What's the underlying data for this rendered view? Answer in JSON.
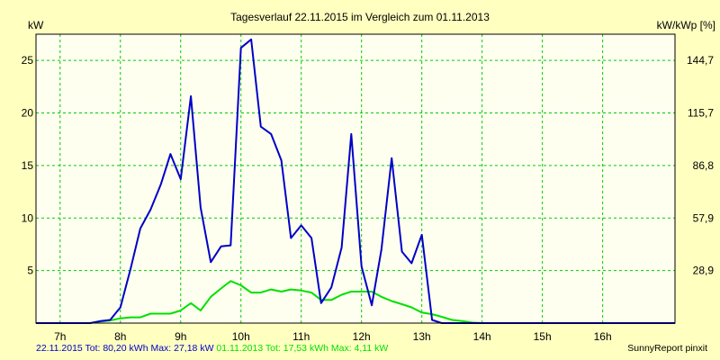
{
  "chart_data": {
    "type": "line",
    "title": "Tagesverlauf 22.11.2015 im Vergleich zum 01.11.2013",
    "ylabel_left": "kW",
    "ylabel_right": "kW/kWp [%]",
    "xlim": [
      6.6,
      17.2
    ],
    "ylim": [
      0,
      27.5
    ],
    "grid": true,
    "x_ticks": [
      {
        "value": 7,
        "label": "7h"
      },
      {
        "value": 8,
        "label": "8h"
      },
      {
        "value": 9,
        "label": "9h"
      },
      {
        "value": 10,
        "label": "10h"
      },
      {
        "value": 11,
        "label": "11h"
      },
      {
        "value": 12,
        "label": "12h"
      },
      {
        "value": 13,
        "label": "13h"
      },
      {
        "value": 14,
        "label": "14h"
      },
      {
        "value": 15,
        "label": "15h"
      },
      {
        "value": 16,
        "label": "16h"
      }
    ],
    "y_ticks_left": [
      {
        "value": 5,
        "label": "5"
      },
      {
        "value": 10,
        "label": "10"
      },
      {
        "value": 15,
        "label": "15"
      },
      {
        "value": 20,
        "label": "20"
      },
      {
        "value": 25,
        "label": "25"
      }
    ],
    "y_ticks_right": [
      {
        "value": 5,
        "label": "28,9"
      },
      {
        "value": 10,
        "label": "57,9"
      },
      {
        "value": 15,
        "label": "86,8"
      },
      {
        "value": 20,
        "label": "115,7"
      },
      {
        "value": 25,
        "label": "144,7"
      }
    ],
    "series": [
      {
        "name": "22.11.2015",
        "color": "#0000c8",
        "x": [
          6.6,
          7.5,
          7.67,
          7.83,
          8.0,
          8.17,
          8.33,
          8.5,
          8.67,
          8.83,
          9.0,
          9.17,
          9.33,
          9.5,
          9.67,
          9.83,
          10.0,
          10.17,
          10.33,
          10.5,
          10.67,
          10.83,
          11.0,
          11.17,
          11.33,
          11.5,
          11.67,
          11.83,
          12.0,
          12.17,
          12.33,
          12.5,
          12.67,
          12.83,
          13.0,
          13.17,
          13.33,
          13.5,
          13.67,
          13.83,
          14.0,
          14.17,
          14.33,
          14.5,
          14.67,
          14.83,
          15.0,
          15.17,
          15.33,
          15.5,
          15.67,
          16.0,
          17.2
        ],
        "y": [
          0,
          0,
          0.2,
          0.3,
          1.5,
          5.2,
          9.0,
          10.8,
          13.2,
          16.1,
          13.7,
          21.6,
          11.0,
          5.8,
          7.3,
          7.4,
          26.2,
          27.0,
          18.7,
          18.0,
          15.5,
          8.1,
          9.3,
          8.1,
          1.9,
          3.4,
          7.2,
          18.0,
          5.4,
          1.7,
          7.0,
          15.7,
          6.8,
          5.7,
          8.4,
          0.3,
          0,
          0,
          0,
          0,
          0,
          0,
          0,
          0,
          0,
          0,
          0,
          0,
          0,
          0,
          0,
          0,
          0
        ]
      },
      {
        "name": "01.11.2013",
        "color": "#00e000",
        "x": [
          6.6,
          7.5,
          7.67,
          7.83,
          8.0,
          8.17,
          8.33,
          8.5,
          8.67,
          8.83,
          9.0,
          9.17,
          9.33,
          9.5,
          9.67,
          9.83,
          10.0,
          10.17,
          10.33,
          10.5,
          10.67,
          10.83,
          11.0,
          11.17,
          11.33,
          11.5,
          11.67,
          11.83,
          12.0,
          12.17,
          12.33,
          12.5,
          12.67,
          12.83,
          13.0,
          13.17,
          13.33,
          13.5,
          13.67,
          13.83,
          14.0,
          14.17,
          14.33,
          14.5,
          14.67,
          14.83,
          15.0,
          15.17,
          15.33,
          15.5,
          15.67,
          16.0,
          17.2
        ],
        "y": [
          0,
          0,
          0.15,
          0.25,
          0.45,
          0.55,
          0.55,
          0.9,
          0.9,
          0.9,
          1.2,
          1.9,
          1.2,
          2.5,
          3.3,
          4.0,
          3.6,
          2.9,
          2.9,
          3.2,
          3.0,
          3.2,
          3.1,
          2.9,
          2.2,
          2.2,
          2.7,
          3.0,
          3.0,
          3.0,
          2.5,
          2.1,
          1.8,
          1.5,
          1.0,
          0.85,
          0.6,
          0.3,
          0.2,
          0.05,
          0,
          0,
          0,
          0,
          0,
          0,
          0,
          0,
          0,
          0,
          0,
          0,
          0
        ]
      }
    ]
  },
  "footer": {
    "series1_text": "22.11.2015 Tot: 80,20 kWh Max: 27,18 kW",
    "series2_text": "01.11.2013 Tot: 17,53 kWh Max: 4,11 kW",
    "credit": "SunnyReport pinxit"
  }
}
